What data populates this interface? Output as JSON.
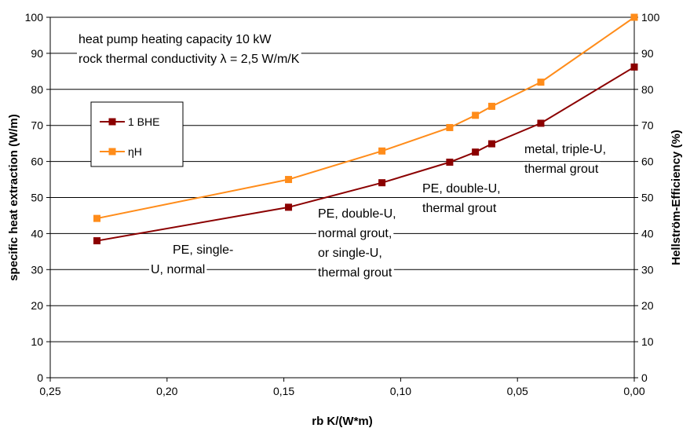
{
  "chart_data": {
    "type": "line",
    "xlabel": "rb K/(W*m)",
    "ylabel": "specific heat extraction (W/m)",
    "y2label": "Hellström-Efficiency (%)",
    "x_reversed": true,
    "xlim": [
      0.25,
      0.0
    ],
    "ylim": [
      0,
      100
    ],
    "y2lim": [
      0,
      100
    ],
    "x_ticks": [
      "0,25",
      "0,20",
      "0,15",
      "0,10",
      "0,05",
      "0,00"
    ],
    "x_tick_values": [
      0.25,
      0.2,
      0.15,
      0.1,
      0.05,
      0.0
    ],
    "y_ticks": [
      "0",
      "10",
      "20",
      "30",
      "40",
      "50",
      "60",
      "70",
      "80",
      "90",
      "100"
    ],
    "y_tick_values": [
      0,
      10,
      20,
      30,
      40,
      50,
      60,
      70,
      80,
      90,
      100
    ],
    "grid": "horizontal",
    "legend_position": "left",
    "series": [
      {
        "name": "1 BHE",
        "axis": "left",
        "color": "#8B0000",
        "x": [
          0.23,
          0.148,
          0.108,
          0.079,
          0.068,
          0.061,
          0.04,
          0.0
        ],
        "y": [
          38.0,
          47.3,
          54.1,
          59.8,
          62.6,
          64.9,
          70.6,
          86.2
        ]
      },
      {
        "name": "ηH",
        "axis": "right",
        "color": "#FF8C1A",
        "x": [
          0.23,
          0.148,
          0.108,
          0.079,
          0.068,
          0.061,
          0.04,
          0.0
        ],
        "y": [
          44.2,
          55.0,
          62.9,
          69.4,
          72.8,
          75.3,
          82.0,
          100.0
        ]
      }
    ],
    "annotations": [
      {
        "id": "header-line-1",
        "text": "heat pump heating capacity 10 kW"
      },
      {
        "id": "header-line-2",
        "text": "rock thermal conductivity λ = 2,5 W/m/K"
      },
      {
        "id": "label-pe-single-1",
        "text": "PE, single-"
      },
      {
        "id": "label-pe-single-2",
        "text": "U, normal"
      },
      {
        "id": "label-pe-double-normal-1",
        "text": "PE, double-U,"
      },
      {
        "id": "label-pe-double-normal-2",
        "text": "normal grout,"
      },
      {
        "id": "label-pe-double-normal-3",
        "text": "or single-U,"
      },
      {
        "id": "label-pe-double-normal-4",
        "text": "thermal grout"
      },
      {
        "id": "label-pe-double-thermal-1",
        "text": "PE, double-U,"
      },
      {
        "id": "label-pe-double-thermal-2",
        "text": "thermal grout"
      },
      {
        "id": "label-metal-1",
        "text": "metal, triple-U,"
      },
      {
        "id": "label-metal-2",
        "text": "thermal grout"
      }
    ]
  }
}
